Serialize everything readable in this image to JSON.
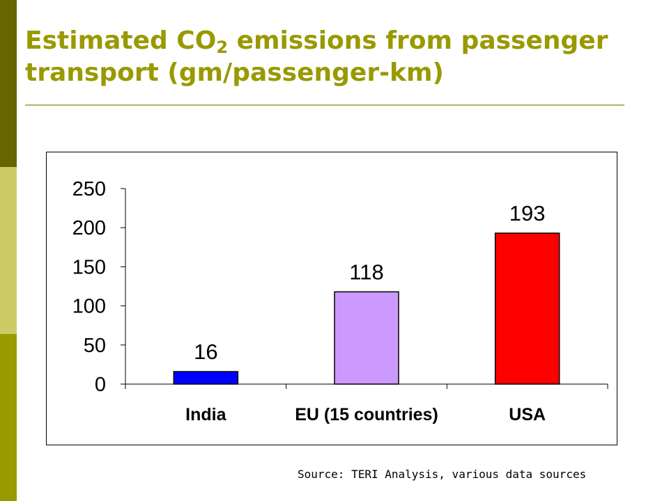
{
  "slide": {
    "title_part1": "Estimated CO",
    "title_sub": "2",
    "title_part2": " emissions from passenger",
    "title_line2": "transport (gm/passenger-km)",
    "source": "Source: TERI Analysis, various data sources"
  },
  "theme": {
    "sidebar_colors": [
      "#666600",
      "#cccc66",
      "#999900"
    ],
    "title_color": "#999900"
  },
  "chart_data": {
    "type": "bar",
    "categories": [
      "India",
      "EU (15 countries)",
      "USA"
    ],
    "values": [
      16,
      118,
      193
    ],
    "data_labels": [
      "16",
      "118",
      "193"
    ],
    "colors": [
      "#0000ff",
      "#cc99ff",
      "#ff0000"
    ],
    "ylim": [
      0,
      250
    ],
    "yticks": [
      0,
      50,
      100,
      150,
      200,
      250
    ],
    "ytick_labels": [
      "0",
      "50",
      "100",
      "150",
      "200",
      "250"
    ],
    "grid": false,
    "legend": "none"
  }
}
